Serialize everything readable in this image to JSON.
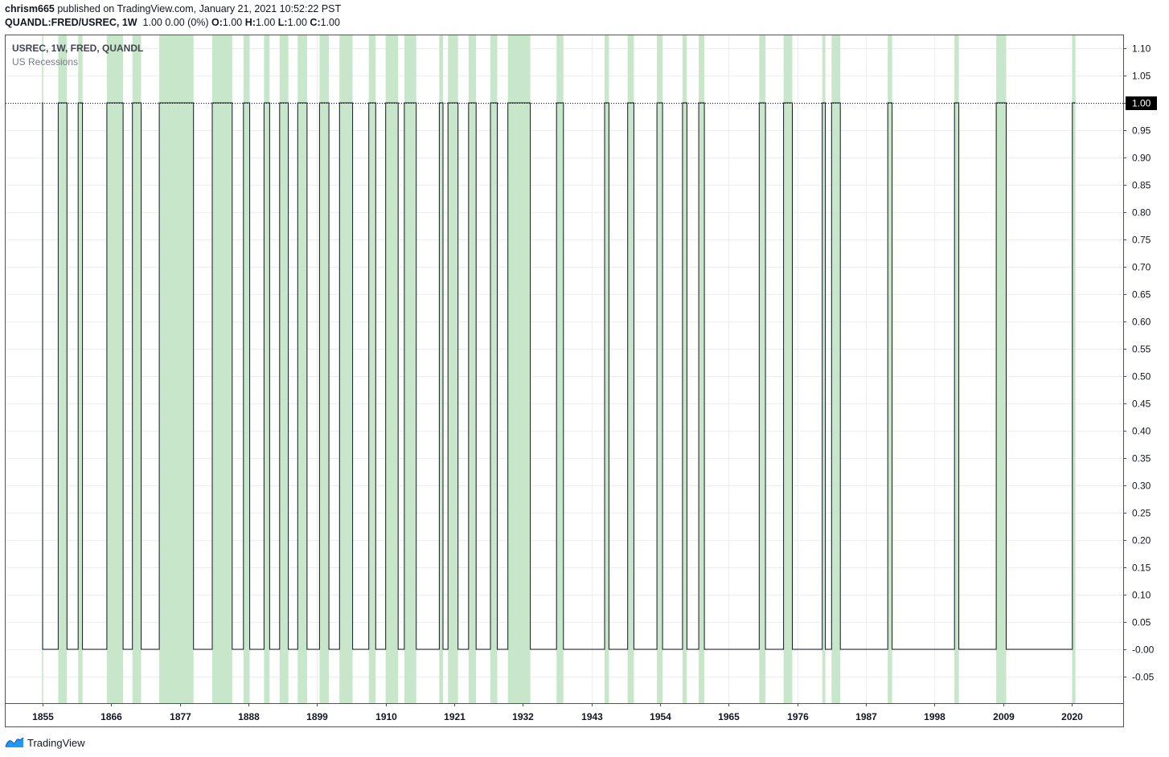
{
  "header": {
    "author": "chrism665",
    "published_text": "published on TradingView.com, January 21, 2021 10:52:22 PST",
    "symbol": "QUANDL:FRED/USREC, 1W",
    "price_summary": "1.00 0.00 (0%)",
    "ohlc": [
      {
        "label": "O:",
        "value": "1.00"
      },
      {
        "label": "H:",
        "value": "1.00"
      },
      {
        "label": "L:",
        "value": "1.00"
      },
      {
        "label": "C:",
        "value": "1.00"
      }
    ]
  },
  "legend": {
    "title": "USREC, 1W, FRED, QUANDL",
    "subtitle": "US Recessions"
  },
  "footer": {
    "brand": "TradingView",
    "logo_icon": "tradingview-logo-icon"
  },
  "colors": {
    "recession_fill": "#c8e6c9",
    "line": "#131722",
    "grid": "#eceef2",
    "axis": "#50535e",
    "last_price_bg": "#000000",
    "last_price_text": "#ffffff"
  },
  "chart_data": {
    "type": "line",
    "step": true,
    "shaded_recessions": true,
    "title": "",
    "xlabel": "",
    "ylabel": "",
    "xlim": [
      1855.0,
      2027.0
    ],
    "ylim": [
      -0.1,
      1.12
    ],
    "x_ticks": [
      1855,
      1866,
      1877,
      1888,
      1899,
      1910,
      1921,
      1932,
      1943,
      1954,
      1965,
      1976,
      1987,
      1998,
      2009,
      2020
    ],
    "y_ticks": [
      1.1,
      1.05,
      1.0,
      0.95,
      0.9,
      0.85,
      0.8,
      0.75,
      0.7,
      0.65,
      0.6,
      0.55,
      0.5,
      0.45,
      0.4,
      0.35,
      0.3,
      0.25,
      0.2,
      0.15,
      0.1,
      0.05,
      -0.0,
      -0.05
    ],
    "y_tick_labels": [
      "1.10",
      "1.05",
      "1.00",
      "0.95",
      "0.90",
      "0.85",
      "0.80",
      "0.75",
      "0.70",
      "0.65",
      "0.60",
      "0.55",
      "0.50",
      "0.45",
      "0.40",
      "0.35",
      "0.30",
      "0.25",
      "0.20",
      "0.15",
      "0.10",
      "0.05",
      "-0.00",
      "-0.05"
    ],
    "last_value": 1.0,
    "last_value_label": "1.00",
    "series_end": 2020.6,
    "recessions": [
      [
        1854.9,
        1855.0
      ],
      [
        1857.5,
        1858.9
      ],
      [
        1860.7,
        1861.4
      ],
      [
        1865.3,
        1867.9
      ],
      [
        1869.4,
        1870.8
      ],
      [
        1873.7,
        1879.2
      ],
      [
        1882.2,
        1885.4
      ],
      [
        1887.2,
        1888.2
      ],
      [
        1890.5,
        1891.4
      ],
      [
        1893.0,
        1894.4
      ],
      [
        1895.9,
        1897.4
      ],
      [
        1899.4,
        1900.9
      ],
      [
        1902.6,
        1904.7
      ],
      [
        1907.3,
        1908.4
      ],
      [
        1910.0,
        1912.0
      ],
      [
        1913.0,
        1914.9
      ],
      [
        1918.6,
        1919.2
      ],
      [
        1920.0,
        1921.6
      ],
      [
        1923.3,
        1924.5
      ],
      [
        1926.8,
        1927.9
      ],
      [
        1929.6,
        1933.2
      ],
      [
        1937.4,
        1938.5
      ],
      [
        1945.1,
        1945.8
      ],
      [
        1948.8,
        1949.8
      ],
      [
        1953.5,
        1954.4
      ],
      [
        1957.6,
        1958.3
      ],
      [
        1960.2,
        1961.1
      ],
      [
        1969.9,
        1970.9
      ],
      [
        1973.8,
        1975.2
      ],
      [
        1980.0,
        1980.5
      ],
      [
        1981.5,
        1982.9
      ],
      [
        1990.5,
        1991.2
      ],
      [
        2001.2,
        2001.9
      ],
      [
        2007.9,
        2009.5
      ],
      [
        2020.1,
        2020.6
      ]
    ]
  }
}
